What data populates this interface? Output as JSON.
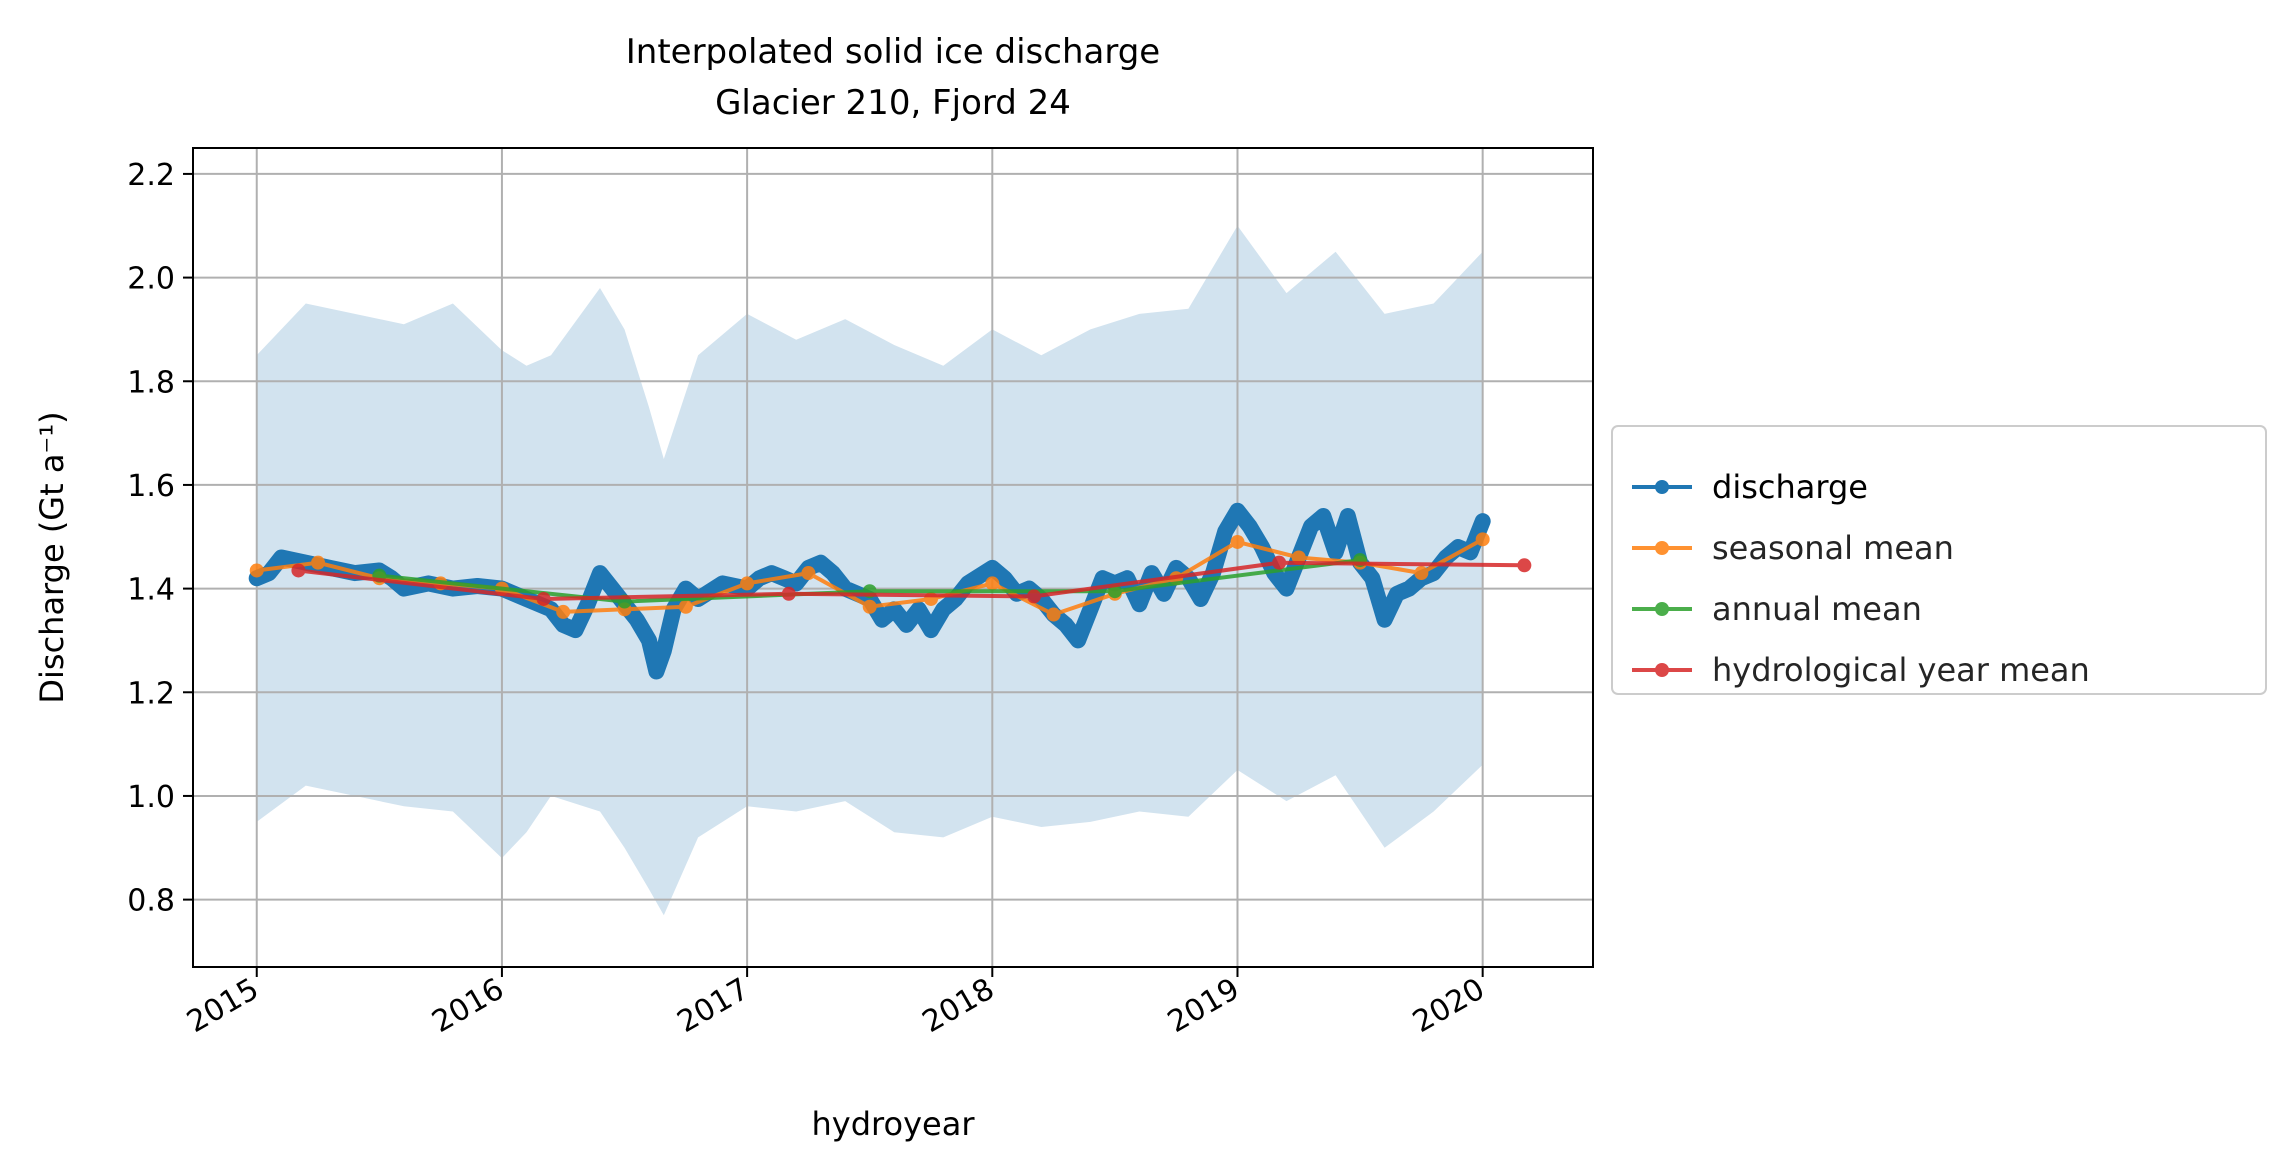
{
  "chart_data": {
    "type": "line",
    "title": "Interpolated solid ice discharge",
    "subtitle": "Glacier 210, Fjord 24",
    "xlabel": "hydroyear",
    "ylabel": "Discharge (Gt a⁻¹)",
    "xlim": [
      2014.74,
      2020.45
    ],
    "ylim": [
      0.67,
      2.25
    ],
    "xticks": [
      "2015",
      "2016",
      "2017",
      "2018",
      "2019",
      "2020"
    ],
    "yticks": [
      "0.8",
      "1.0",
      "1.2",
      "1.4",
      "1.6",
      "1.8",
      "2.0",
      "2.2"
    ],
    "grid": true,
    "legend_position": "right, outside plot",
    "colors": {
      "discharge": "#1f77b4",
      "seasonal": "#ff7f0e",
      "annual": "#2ca02c",
      "hydro": "#d62728",
      "band": "#d2e3ef"
    },
    "series": [
      {
        "name": "discharge",
        "x": [
          2015.0,
          2015.05,
          2015.1,
          2015.15,
          2015.2,
          2015.3,
          2015.4,
          2015.5,
          2015.55,
          2015.6,
          2015.7,
          2015.8,
          2015.9,
          2016.0,
          2016.1,
          2016.2,
          2016.25,
          2016.3,
          2016.35,
          2016.4,
          2016.45,
          2016.5,
          2016.55,
          2016.6,
          2016.63,
          2016.66,
          2016.7,
          2016.75,
          2016.8,
          2016.9,
          2017.0,
          2017.05,
          2017.1,
          2017.15,
          2017.2,
          2017.25,
          2017.3,
          2017.35,
          2017.4,
          2017.5,
          2017.55,
          2017.6,
          2017.65,
          2017.7,
          2017.75,
          2017.8,
          2017.85,
          2017.9,
          2018.0,
          2018.05,
          2018.1,
          2018.15,
          2018.2,
          2018.25,
          2018.3,
          2018.35,
          2018.4,
          2018.45,
          2018.5,
          2018.55,
          2018.6,
          2018.65,
          2018.7,
          2018.75,
          2018.8,
          2018.85,
          2018.9,
          2018.95,
          2019.0,
          2019.05,
          2019.1,
          2019.15,
          2019.2,
          2019.25,
          2019.3,
          2019.35,
          2019.4,
          2019.45,
          2019.5,
          2019.55,
          2019.6,
          2019.65,
          2019.7,
          2019.75,
          2019.8,
          2019.85,
          2019.9,
          2019.95,
          2020.0
        ],
        "values": [
          1.42,
          1.43,
          1.46,
          1.455,
          1.45,
          1.44,
          1.43,
          1.435,
          1.42,
          1.4,
          1.41,
          1.4,
          1.405,
          1.4,
          1.38,
          1.36,
          1.33,
          1.32,
          1.37,
          1.43,
          1.4,
          1.37,
          1.34,
          1.3,
          1.24,
          1.28,
          1.36,
          1.4,
          1.38,
          1.41,
          1.4,
          1.42,
          1.43,
          1.42,
          1.41,
          1.44,
          1.45,
          1.43,
          1.4,
          1.38,
          1.34,
          1.36,
          1.33,
          1.36,
          1.32,
          1.36,
          1.38,
          1.41,
          1.44,
          1.42,
          1.39,
          1.4,
          1.38,
          1.35,
          1.33,
          1.3,
          1.36,
          1.42,
          1.41,
          1.42,
          1.37,
          1.43,
          1.39,
          1.44,
          1.42,
          1.38,
          1.43,
          1.51,
          1.55,
          1.52,
          1.48,
          1.43,
          1.4,
          1.46,
          1.52,
          1.54,
          1.47,
          1.54,
          1.45,
          1.42,
          1.34,
          1.39,
          1.4,
          1.42,
          1.43,
          1.46,
          1.48,
          1.47,
          1.53
        ]
      },
      {
        "name": "seasonal mean",
        "x": [
          2015.0,
          2015.25,
          2015.5,
          2015.75,
          2016.0,
          2016.25,
          2016.5,
          2016.75,
          2017.0,
          2017.25,
          2017.5,
          2017.75,
          2018.0,
          2018.25,
          2018.5,
          2018.75,
          2019.0,
          2019.25,
          2019.5,
          2019.75,
          2020.0
        ],
        "values": [
          1.435,
          1.45,
          1.42,
          1.41,
          1.4,
          1.355,
          1.36,
          1.365,
          1.41,
          1.43,
          1.365,
          1.38,
          1.41,
          1.35,
          1.39,
          1.42,
          1.49,
          1.46,
          1.45,
          1.43,
          1.495
        ]
      },
      {
        "name": "annual mean",
        "x": [
          2015.5,
          2016.5,
          2017.5,
          2018.5,
          2019.5
        ],
        "values": [
          1.425,
          1.375,
          1.395,
          1.395,
          1.455
        ]
      },
      {
        "name": "hydrological year mean",
        "x": [
          2015.17,
          2016.17,
          2017.17,
          2018.17,
          2019.17,
          2020.17
        ],
        "values": [
          1.435,
          1.38,
          1.39,
          1.385,
          1.45,
          1.445
        ]
      }
    ],
    "uncertainty_band": {
      "x": [
        2015.0,
        2015.2,
        2015.4,
        2015.6,
        2015.8,
        2016.0,
        2016.1,
        2016.2,
        2016.4,
        2016.5,
        2016.6,
        2016.66,
        2016.8,
        2017.0,
        2017.2,
        2017.4,
        2017.6,
        2017.8,
        2018.0,
        2018.2,
        2018.4,
        2018.6,
        2018.8,
        2019.0,
        2019.2,
        2019.4,
        2019.6,
        2019.8,
        2020.0
      ],
      "upper": [
        1.85,
        1.95,
        1.93,
        1.91,
        1.95,
        1.86,
        1.83,
        1.85,
        1.98,
        1.9,
        1.75,
        1.65,
        1.85,
        1.93,
        1.88,
        1.92,
        1.87,
        1.83,
        1.9,
        1.85,
        1.9,
        1.93,
        1.94,
        2.1,
        1.97,
        2.05,
        1.93,
        1.95,
        2.05
      ],
      "lower": [
        0.95,
        1.02,
        1.0,
        0.98,
        0.97,
        0.88,
        0.93,
        1.0,
        0.97,
        0.9,
        0.82,
        0.77,
        0.92,
        0.98,
        0.97,
        0.99,
        0.93,
        0.92,
        0.96,
        0.94,
        0.95,
        0.97,
        0.96,
        1.05,
        0.99,
        1.04,
        0.9,
        0.97,
        1.06
      ]
    }
  }
}
